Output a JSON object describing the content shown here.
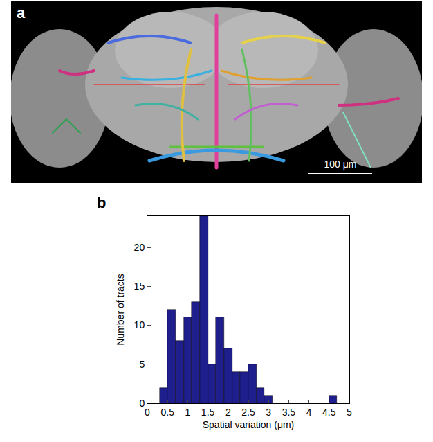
{
  "image_panel": {
    "label": "a",
    "scale_bar": "100 μm"
  },
  "chart_data": {
    "type": "histogram",
    "annotations": [
      "b"
    ],
    "x_label": "Spatial variation (μm)",
    "y_label": "Number of tracts",
    "bins": [
      0.3,
      0.5,
      0.7,
      0.9,
      1.1,
      1.3,
      1.5,
      1.7,
      1.9,
      2.1,
      2.3,
      2.5,
      2.7,
      2.9,
      3.1,
      3.3,
      3.5,
      3.7,
      3.9,
      4.1,
      4.3,
      4.5,
      4.7
    ],
    "counts": [
      2,
      12,
      8,
      11,
      13,
      24,
      5,
      11,
      7,
      4,
      4,
      5,
      2,
      1,
      0,
      0,
      0,
      0,
      0,
      0,
      0,
      1
    ],
    "color": "#1e1e8c",
    "xlim": [
      0,
      5
    ],
    "xticks": [
      0,
      0.5,
      1,
      1.5,
      2,
      2.5,
      3,
      3.5,
      4,
      4.5,
      5
    ],
    "ylim": [
      0,
      24
    ],
    "yticks": [
      0,
      5,
      10,
      15,
      20
    ],
    "grid": false
  }
}
